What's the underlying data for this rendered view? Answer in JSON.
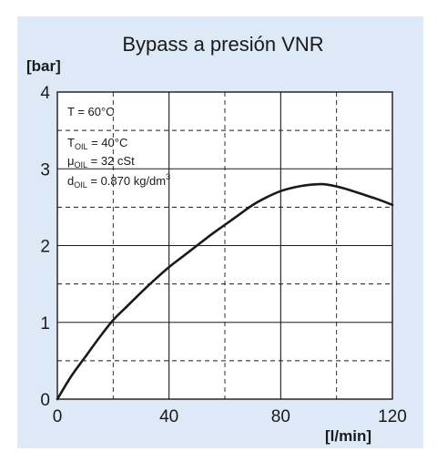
{
  "chart_data": {
    "type": "line",
    "title": "Bypass a presión VNR",
    "xlabel": "[l/min]",
    "ylabel": "[bar]",
    "xlim": [
      0,
      120
    ],
    "ylim": [
      0,
      4
    ],
    "x_ticks": [
      "0",
      "40",
      "80",
      "120"
    ],
    "y_ticks": [
      "0",
      "1",
      "2",
      "3",
      "4"
    ],
    "grid": "solid major lines every 40 l/min and 1 bar, dashed minor lines every 20 l/min and 0.5 bar",
    "annotations": {
      "temp": "T = 60°C",
      "toil": {
        "base": "T",
        "sub": "OIL",
        "rest": " = 40°C"
      },
      "mu": {
        "base": "μ",
        "sub": "OIL",
        "rest": " = 32 cSt"
      },
      "d": {
        "base": "d",
        "sub": "OIL",
        "rest": " = 0.870 kg/dm",
        "sup": "3"
      }
    },
    "series": [
      {
        "x": [
          0,
          5,
          10,
          15,
          20,
          25,
          30,
          35,
          40,
          45,
          50,
          55,
          60,
          65,
          70,
          75,
          80,
          85,
          90,
          95,
          100,
          105,
          110,
          115,
          120
        ],
        "y": [
          0,
          0.3,
          0.55,
          0.8,
          1.03,
          1.21,
          1.39,
          1.56,
          1.72,
          1.86,
          2.0,
          2.14,
          2.27,
          2.4,
          2.53,
          2.63,
          2.71,
          2.76,
          2.79,
          2.8,
          2.77,
          2.72,
          2.66,
          2.6,
          2.53
        ],
        "color": "#1a1a1a"
      }
    ]
  }
}
